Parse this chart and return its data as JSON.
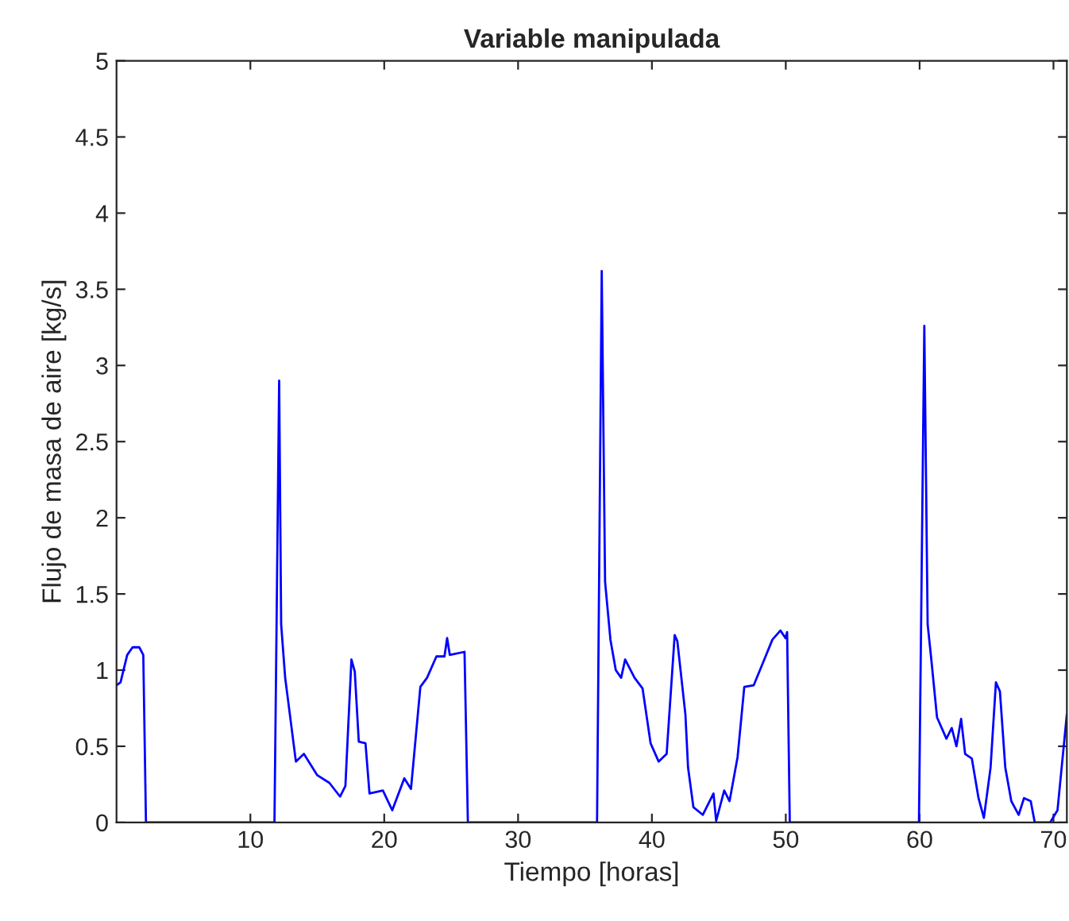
{
  "chart_data": {
    "type": "line",
    "title": "Variable manipulada",
    "xlabel": "Tiempo [horas]",
    "ylabel": "Flujo de masa de aire [kg/s]",
    "xlim": [
      0,
      71
    ],
    "ylim": [
      0,
      5
    ],
    "xticks": [
      10,
      20,
      30,
      40,
      50,
      60,
      70
    ],
    "yticks": [
      0,
      0.5,
      1,
      1.5,
      2,
      2.5,
      3,
      3.5,
      4,
      4.5,
      5
    ],
    "grid": false,
    "legend": false,
    "marker": "none",
    "line_style": "solid",
    "series": [
      {
        "color": "#0000ff",
        "x": [
          0,
          0.3,
          0.8,
          1.2,
          1.7,
          2.0,
          2.2,
          11.8,
          12.15,
          12.3,
          12.6,
          13.4,
          14.0,
          15.0,
          15.9,
          16.7,
          17.1,
          17.55,
          17.8,
          18.1,
          18.6,
          18.9,
          19.9,
          20.6,
          21.5,
          22.0,
          22.7,
          23.2,
          23.9,
          24.5,
          24.7,
          24.9,
          26.0,
          26.25,
          35.9,
          36.25,
          36.5,
          36.9,
          37.3,
          37.7,
          38.0,
          38.7,
          39.3,
          39.9,
          40.5,
          41.1,
          41.7,
          41.9,
          42.5,
          42.7,
          43.1,
          43.8,
          44.6,
          44.8,
          45.4,
          45.8,
          46.4,
          46.9,
          47.6,
          48.4,
          49.0,
          49.6,
          49.98,
          50.1,
          50.3,
          59.95,
          60.35,
          60.6,
          60.85,
          61.3,
          62.0,
          62.4,
          62.75,
          63.1,
          63.4,
          63.9,
          64.4,
          64.8,
          65.3,
          65.7,
          66.0,
          66.4,
          66.85,
          67.4,
          67.8,
          68.3,
          68.6,
          69.75,
          70.3,
          71.0
        ],
        "values": [
          0.9,
          0.92,
          1.1,
          1.15,
          1.15,
          1.1,
          0,
          0,
          2.9,
          1.3,
          0.95,
          0.4,
          0.45,
          0.31,
          0.26,
          0.17,
          0.24,
          1.07,
          0.99,
          0.53,
          0.52,
          0.19,
          0.21,
          0.08,
          0.29,
          0.22,
          0.89,
          0.95,
          1.09,
          1.09,
          1.21,
          1.1,
          1.12,
          0,
          0,
          3.62,
          1.58,
          1.2,
          1.0,
          0.95,
          1.07,
          0.95,
          0.88,
          0.52,
          0.4,
          0.45,
          1.23,
          1.19,
          0.71,
          0.36,
          0.1,
          0.05,
          0.19,
          0.01,
          0.21,
          0.14,
          0.43,
          0.89,
          0.9,
          1.07,
          1.2,
          1.26,
          1.21,
          1.25,
          0,
          0,
          3.26,
          1.3,
          1.09,
          0.69,
          0.55,
          0.62,
          0.5,
          0.68,
          0.45,
          0.42,
          0.16,
          0.03,
          0.36,
          0.92,
          0.86,
          0.36,
          0.14,
          0.05,
          0.16,
          0.14,
          0,
          0,
          0.08,
          0.71
        ]
      }
    ]
  }
}
